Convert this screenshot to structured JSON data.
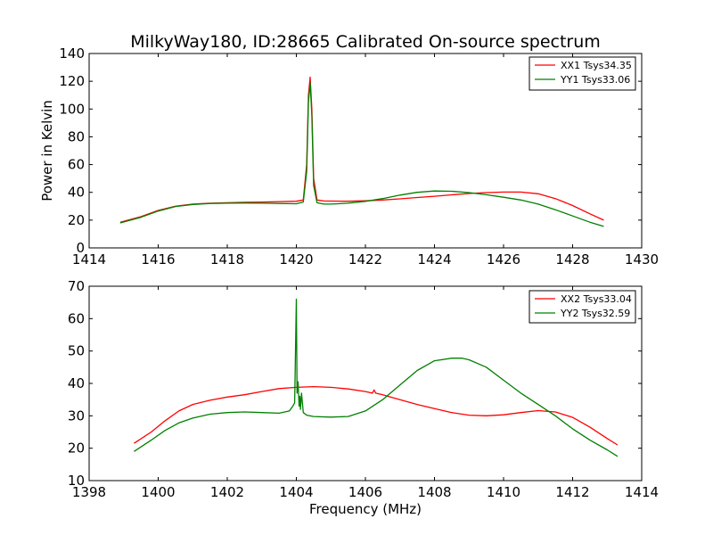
{
  "title": "MilkyWay180, ID:28665 Calibrated On-source spectrum",
  "chart_data": [
    {
      "type": "line",
      "ylabel": "Power in Kelvin",
      "xlabel": "",
      "xlim": [
        1414,
        1430
      ],
      "ylim": [
        0,
        140
      ],
      "xticks": [
        "1414",
        "1416",
        "1418",
        "1420",
        "1422",
        "1424",
        "1426",
        "1428",
        "1430"
      ],
      "yticks": [
        "0",
        "20",
        "40",
        "60",
        "80",
        "100",
        "120",
        "140"
      ],
      "legend_position": "top-right",
      "series": [
        {
          "name": "XX1 Tsys34.35",
          "color": "#ff0000",
          "x": [
            1414.9,
            1415.5,
            1416.0,
            1416.5,
            1417.0,
            1417.5,
            1418.0,
            1418.5,
            1419.0,
            1419.5,
            1420.0,
            1420.2,
            1420.3,
            1420.35,
            1420.4,
            1420.45,
            1420.5,
            1420.6,
            1420.8,
            1421.0,
            1421.5,
            1422.0,
            1422.5,
            1423.0,
            1423.5,
            1424.0,
            1424.5,
            1425.0,
            1425.5,
            1426.0,
            1426.5,
            1427.0,
            1427.5,
            1428.0,
            1428.5,
            1428.9
          ],
          "y": [
            18.5,
            22.5,
            27,
            30,
            31.5,
            32.2,
            32.5,
            32.8,
            33,
            33.3,
            33.6,
            34.5,
            60,
            110,
            123,
            100,
            50,
            34.5,
            33.8,
            33.7,
            33.6,
            33.9,
            34.5,
            35.3,
            36.3,
            37.2,
            38.2,
            39.2,
            39.8,
            40.2,
            40.2,
            39,
            35.5,
            30.5,
            24.5,
            20
          ]
        },
        {
          "name": "YY1 Tsys33.06",
          "color": "#008000",
          "x": [
            1414.9,
            1415.5,
            1416.0,
            1416.5,
            1417.0,
            1417.5,
            1418.0,
            1418.5,
            1419.0,
            1419.5,
            1420.0,
            1420.2,
            1420.3,
            1420.35,
            1420.4,
            1420.45,
            1420.5,
            1420.6,
            1420.8,
            1421.0,
            1421.5,
            1422.0,
            1422.5,
            1423.0,
            1423.5,
            1424.0,
            1424.5,
            1425.0,
            1425.5,
            1426.0,
            1426.5,
            1427.0,
            1427.5,
            1428.0,
            1428.5,
            1428.9
          ],
          "y": [
            18,
            22,
            26.5,
            29.8,
            31.3,
            32,
            32.2,
            32.3,
            32.2,
            32,
            31.8,
            33,
            55,
            105,
            119,
            95,
            45,
            32.5,
            31.5,
            31.5,
            32.2,
            33.5,
            35.5,
            38,
            40,
            41,
            40.8,
            39.8,
            38.3,
            36.5,
            34.5,
            31.5,
            27.5,
            23,
            18.5,
            15.5
          ]
        }
      ]
    },
    {
      "type": "line",
      "xlabel": "Frequency (MHz)",
      "ylabel": "",
      "xlim": [
        1398,
        1414
      ],
      "ylim": [
        10,
        70
      ],
      "xticks": [
        "1398",
        "1400",
        "1402",
        "1404",
        "1406",
        "1408",
        "1410",
        "1412",
        "1414"
      ],
      "yticks": [
        "10",
        "20",
        "30",
        "40",
        "50",
        "60",
        "70"
      ],
      "legend_position": "top-right",
      "series": [
        {
          "name": "XX2 Tsys33.04",
          "color": "#ff0000",
          "x": [
            1399.3,
            1399.8,
            1400.2,
            1400.6,
            1401.0,
            1401.5,
            1402.0,
            1402.5,
            1403.0,
            1403.5,
            1404.0,
            1404.5,
            1405.0,
            1405.5,
            1406.0,
            1406.2,
            1406.25,
            1406.3,
            1406.5,
            1407.0,
            1407.5,
            1408.0,
            1408.5,
            1409.0,
            1409.5,
            1410.0,
            1410.5,
            1411.0,
            1411.5,
            1412.0,
            1412.5,
            1413.0,
            1413.3
          ],
          "y": [
            21.5,
            25,
            28.5,
            31.5,
            33.5,
            34.8,
            35.8,
            36.5,
            37.5,
            38.4,
            38.8,
            39,
            38.8,
            38.3,
            37.5,
            37,
            38,
            37,
            36.5,
            35,
            33.5,
            32.2,
            31,
            30.2,
            30,
            30.3,
            31,
            31.6,
            31.2,
            29.5,
            26.5,
            23,
            21
          ]
        },
        {
          "name": "YY2 Tsys32.59",
          "color": "#008000",
          "x": [
            1399.3,
            1399.8,
            1400.2,
            1400.6,
            1401.0,
            1401.5,
            1402.0,
            1402.5,
            1403.0,
            1403.5,
            1403.8,
            1403.9,
            1403.95,
            1404.0,
            1404.02,
            1404.05,
            1404.08,
            1404.1,
            1404.12,
            1404.15,
            1404.2,
            1404.3,
            1404.5,
            1405.0,
            1405.5,
            1406.0,
            1406.5,
            1407.0,
            1407.5,
            1408.0,
            1408.5,
            1408.8,
            1409.0,
            1409.5,
            1410.0,
            1410.5,
            1411.0,
            1411.5,
            1412.0,
            1412.5,
            1413.0,
            1413.3
          ],
          "y": [
            19,
            22.5,
            25.5,
            27.8,
            29.3,
            30.5,
            31,
            31.2,
            31,
            30.8,
            31.5,
            33,
            34,
            66,
            37,
            40.5,
            33,
            36,
            32,
            37,
            31,
            30.2,
            29.8,
            29.6,
            29.8,
            31.5,
            35,
            39.5,
            44,
            47,
            47.8,
            47.8,
            47.3,
            45,
            41,
            37,
            33.5,
            30,
            26,
            22.5,
            19.5,
            17.5
          ]
        }
      ]
    }
  ]
}
